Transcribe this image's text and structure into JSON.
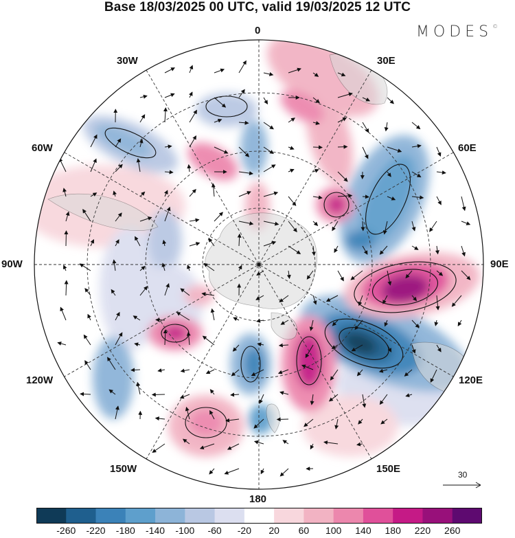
{
  "title": "Base 18/03/2025 00 UTC, valid 19/03/2025 12 UTC",
  "logo": "MODES",
  "logo_mark": "©",
  "projection": "south-polar-stereographic",
  "longitude_labels": [
    "0",
    "30E",
    "60E",
    "90E",
    "120E",
    "150E",
    "180",
    "150W",
    "120W",
    "90W",
    "60W",
    "30W"
  ],
  "wind_scale_label": "30",
  "colorbar": {
    "ticks": [
      "-260",
      "-220",
      "-180",
      "-140",
      "-100",
      "-60",
      "-20",
      "20",
      "60",
      "100",
      "140",
      "180",
      "220",
      "260"
    ],
    "colors": [
      "#0f3a57",
      "#1f5f8e",
      "#3b82b8",
      "#5e9fcc",
      "#8db4d8",
      "#b9c8e3",
      "#dcdff0",
      "#ffffff",
      "#f8d7dd",
      "#f2b3c3",
      "#ec87ad",
      "#e0509a",
      "#c51a86",
      "#98107a",
      "#5e0a70"
    ]
  },
  "colors": {
    "land": "#d9d9d9",
    "grid": "#333333",
    "contour": "#111111"
  }
}
